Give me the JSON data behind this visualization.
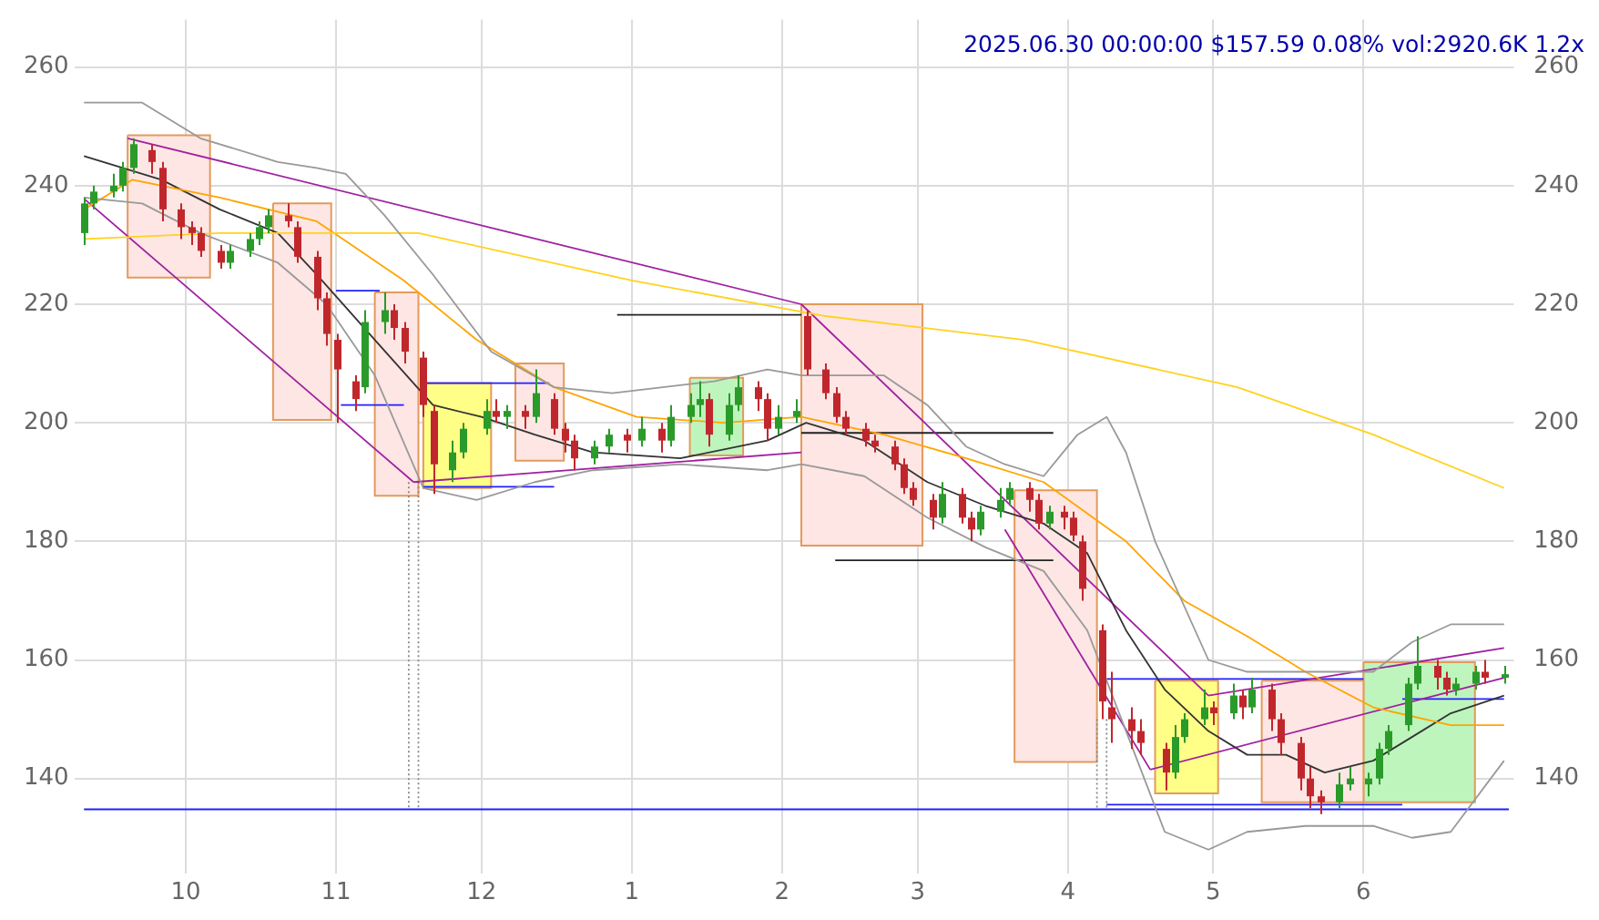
{
  "chart_data": {
    "type": "candlestick",
    "title": "2025.06.30 00:00:00 $157.59 0.08% vol:2920.6K 1.2x",
    "x": [
      "2024-09-10",
      "2024-09-12",
      "2024-09-16",
      "2024-09-18",
      "2024-09-20",
      "2024-09-24",
      "2024-09-26",
      "2024-09-30",
      "2024-10-02",
      "2024-10-04",
      "2024-10-08",
      "2024-10-10",
      "2024-10-14",
      "2024-10-16",
      "2024-10-18",
      "2024-10-22",
      "2024-10-24",
      "2024-10-28",
      "2024-10-30",
      "2024-11-01",
      "2024-11-05",
      "2024-11-07",
      "2024-11-11",
      "2024-11-13",
      "2024-11-15",
      "2024-11-19",
      "2024-11-21",
      "2024-11-25",
      "2024-11-27",
      "2024-12-02",
      "2024-12-04",
      "2024-12-06",
      "2024-12-10",
      "2024-12-12",
      "2024-12-16",
      "2024-12-18",
      "2024-12-20",
      "2024-12-24",
      "2024-12-27",
      "2024-12-31",
      "2025-01-03",
      "2025-01-07",
      "2025-01-09",
      "2025-01-13",
      "2025-01-15",
      "2025-01-17",
      "2025-01-21",
      "2025-01-23",
      "2025-01-27",
      "2025-01-29",
      "2025-01-31",
      "2025-02-04",
      "2025-02-06",
      "2025-02-10",
      "2025-02-12",
      "2025-02-14",
      "2025-02-18",
      "2025-02-20",
      "2025-02-24",
      "2025-02-26",
      "2025-02-28",
      "2025-03-04",
      "2025-03-06",
      "2025-03-10",
      "2025-03-12",
      "2025-03-14",
      "2025-03-18",
      "2025-03-20",
      "2025-03-24",
      "2025-03-26",
      "2025-03-28",
      "2025-03-31",
      "2025-04-02",
      "2025-04-04",
      "2025-04-08",
      "2025-04-10",
      "2025-04-14",
      "2025-04-16",
      "2025-04-21",
      "2025-04-23",
      "2025-04-25",
      "2025-04-29",
      "2025-05-01",
      "2025-05-05",
      "2025-05-07",
      "2025-05-09",
      "2025-05-13",
      "2025-05-15",
      "2025-05-19",
      "2025-05-21",
      "2025-05-23",
      "2025-05-27",
      "2025-05-29",
      "2025-06-02",
      "2025-06-04",
      "2025-06-06",
      "2025-06-10",
      "2025-06-12",
      "2025-06-16",
      "2025-06-18",
      "2025-06-20",
      "2025-06-24",
      "2025-06-26",
      "2025-06-30"
    ],
    "ohlc": [
      [
        232,
        238,
        230,
        237
      ],
      [
        237,
        240,
        236,
        239
      ],
      [
        239,
        242,
        238,
        240
      ],
      [
        240,
        244,
        239,
        243
      ],
      [
        243,
        248,
        242,
        247
      ],
      [
        246,
        247,
        242,
        244
      ],
      [
        243,
        244,
        234,
        236
      ],
      [
        236,
        237,
        231,
        233
      ],
      [
        233,
        234,
        230,
        232
      ],
      [
        232,
        233,
        228,
        229
      ],
      [
        229,
        230,
        226,
        227
      ],
      [
        227,
        230,
        226,
        229
      ],
      [
        229,
        232,
        228,
        231
      ],
      [
        231,
        234,
        230,
        233
      ],
      [
        233,
        236,
        232,
        235
      ],
      [
        235,
        237,
        233,
        234
      ],
      [
        233,
        234,
        227,
        228
      ],
      [
        228,
        229,
        219,
        221
      ],
      [
        221,
        222,
        213,
        215
      ],
      [
        214,
        215,
        200,
        209
      ],
      [
        207,
        208,
        202,
        204
      ],
      [
        206,
        219,
        205,
        217
      ],
      [
        217,
        222,
        215,
        219
      ],
      [
        219,
        220,
        214,
        216
      ],
      [
        216,
        217,
        210,
        212
      ],
      [
        211,
        212,
        201,
        203
      ],
      [
        202,
        203,
        188,
        193
      ],
      [
        192,
        197,
        190,
        195
      ],
      [
        195,
        200,
        194,
        199
      ],
      [
        199,
        204,
        198,
        202
      ],
      [
        202,
        204,
        200,
        201
      ],
      [
        201,
        203,
        199,
        202
      ],
      [
        202,
        203,
        199,
        201
      ],
      [
        201,
        209,
        200,
        205
      ],
      [
        204,
        205,
        198,
        199
      ],
      [
        199,
        200,
        195,
        197
      ],
      [
        197,
        198,
        192,
        194
      ],
      [
        194,
        197,
        193,
        196
      ],
      [
        196,
        199,
        195,
        198
      ],
      [
        198,
        199,
        195,
        197
      ],
      [
        197,
        201,
        196,
        199
      ],
      [
        199,
        200,
        195,
        197
      ],
      [
        197,
        203,
        196,
        201
      ],
      [
        201,
        205,
        200,
        203
      ],
      [
        203,
        207,
        201,
        204
      ],
      [
        204,
        205,
        196,
        198
      ],
      [
        198,
        205,
        197,
        203
      ],
      [
        203,
        208,
        202,
        206
      ],
      [
        206,
        207,
        202,
        204
      ],
      [
        204,
        205,
        197,
        199
      ],
      [
        199,
        203,
        198,
        201
      ],
      [
        201,
        204,
        200,
        202
      ],
      [
        218,
        219,
        208,
        209
      ],
      [
        209,
        210,
        204,
        205
      ],
      [
        205,
        206,
        200,
        201
      ],
      [
        201,
        202,
        198,
        199
      ],
      [
        199,
        200,
        196,
        197
      ],
      [
        197,
        198,
        195,
        196
      ],
      [
        196,
        197,
        192,
        193
      ],
      [
        193,
        194,
        188,
        189
      ],
      [
        189,
        190,
        186,
        187
      ],
      [
        187,
        188,
        182,
        184
      ],
      [
        184,
        190,
        183,
        188
      ],
      [
        188,
        189,
        183,
        184
      ],
      [
        184,
        185,
        180,
        182
      ],
      [
        182,
        186,
        181,
        185
      ],
      [
        185,
        189,
        184,
        187
      ],
      [
        187,
        190,
        186,
        189
      ],
      [
        189,
        190,
        185,
        187
      ],
      [
        187,
        188,
        182,
        183
      ],
      [
        183,
        186,
        182,
        185
      ],
      [
        185,
        186,
        182,
        184
      ],
      [
        184,
        185,
        180,
        181
      ],
      [
        180,
        181,
        170,
        172
      ],
      [
        165,
        166,
        150,
        153
      ],
      [
        152,
        158,
        146,
        150
      ],
      [
        150,
        152,
        145,
        148
      ],
      [
        148,
        150,
        144,
        146
      ],
      [
        145,
        146,
        138,
        141
      ],
      [
        141,
        149,
        140,
        147
      ],
      [
        147,
        151,
        146,
        150
      ],
      [
        150,
        155,
        149,
        152
      ],
      [
        152,
        153,
        149,
        151
      ],
      [
        151,
        156,
        150,
        154
      ],
      [
        154,
        155,
        150,
        152
      ],
      [
        152,
        157,
        151,
        155
      ],
      [
        155,
        156,
        148,
        150
      ],
      [
        150,
        151,
        144,
        146
      ],
      [
        146,
        147,
        138,
        140
      ],
      [
        140,
        142,
        135,
        137
      ],
      [
        137,
        138,
        134,
        136
      ],
      [
        136,
        141,
        135,
        139
      ],
      [
        139,
        142,
        138,
        140
      ],
      [
        139,
        141,
        137,
        140
      ],
      [
        140,
        146,
        139,
        145
      ],
      [
        145,
        149,
        144,
        148
      ],
      [
        149,
        157,
        148,
        156
      ],
      [
        156,
        164,
        155,
        159
      ],
      [
        159,
        160,
        155,
        157
      ],
      [
        157,
        158,
        154,
        155
      ],
      [
        155,
        157,
        154,
        156
      ],
      [
        156,
        159,
        155,
        158
      ],
      [
        158,
        160,
        156,
        157
      ],
      [
        157,
        159,
        156,
        157.6
      ]
    ],
    "xlim": [
      "2024-09-08",
      "2025-07-02"
    ],
    "xticks": [
      {
        "value": "2024-10-01",
        "label": "10"
      },
      {
        "value": "2024-11-01",
        "label": "11"
      },
      {
        "value": "2024-12-01",
        "label": "12"
      },
      {
        "value": "2025-01-01",
        "label": "1"
      },
      {
        "value": "2025-02-01",
        "label": "2"
      },
      {
        "value": "2025-03-01",
        "label": "3"
      },
      {
        "value": "2025-04-01",
        "label": "4"
      },
      {
        "value": "2025-05-01",
        "label": "5"
      },
      {
        "value": "2025-06-01",
        "label": "6"
      }
    ],
    "ylim": [
      124,
      268
    ],
    "yticks": [
      140,
      160,
      180,
      200,
      220,
      240,
      260
    ],
    "y2lim": [
      124,
      268
    ],
    "y2ticks": [
      140,
      160,
      180,
      200,
      220,
      240,
      260
    ],
    "grid": true,
    "legend": false,
    "marker": "none",
    "series": [
      {
        "type": "area",
        "color": "#fde6e4",
        "x": [
          "2024-09-19",
          "2024-10-06",
          "2024-10-06",
          "2024-09-19",
          "2024-09-19"
        ],
        "values": [
          248.5,
          248.5,
          224.5,
          224.5,
          248.5
        ]
      },
      {
        "type": "area",
        "color": "#fde6e4",
        "x": [
          "2024-10-19",
          "2024-10-31",
          "2024-10-31",
          "2024-10-19",
          "2024-10-19"
        ],
        "values": [
          237,
          237,
          200.5,
          200.5,
          237
        ]
      },
      {
        "type": "area",
        "color": "#fde6e4",
        "x": [
          "2024-11-09",
          "2024-11-18",
          "2024-11-18",
          "2024-11-09",
          "2024-11-09"
        ],
        "values": [
          222,
          222,
          187.7,
          187.7,
          222
        ]
      },
      {
        "type": "area",
        "color": "#ffff88",
        "x": [
          "2024-11-19",
          "2024-12-03",
          "2024-12-03",
          "2024-11-19",
          "2024-11-19"
        ],
        "values": [
          206.7,
          206.7,
          189,
          189,
          206.7
        ]
      },
      {
        "type": "area",
        "color": "#fde6e4",
        "x": [
          "2024-12-08",
          "2024-12-18",
          "2024-12-18",
          "2024-12-08",
          "2024-12-08"
        ],
        "values": [
          210,
          210,
          193.6,
          193.6,
          210
        ]
      },
      {
        "type": "area",
        "color": "#bdf5bd",
        "x": [
          "2025-01-13",
          "2025-01-24",
          "2025-01-24",
          "2025-01-13",
          "2025-01-13"
        ],
        "values": [
          207.6,
          207.6,
          194.5,
          194.5,
          207.6
        ]
      },
      {
        "type": "area",
        "color": "#fde6e4",
        "x": [
          "2025-02-05",
          "2025-03-02",
          "2025-03-02",
          "2025-02-05",
          "2025-02-05"
        ],
        "values": [
          220,
          220,
          179.3,
          179.3,
          220
        ]
      },
      {
        "type": "area",
        "color": "#fde6e4",
        "x": [
          "2025-03-21",
          "2025-04-07",
          "2025-04-07",
          "2025-03-21",
          "2025-03-21"
        ],
        "values": [
          188.6,
          188.6,
          142.8,
          142.8,
          188.6
        ]
      },
      {
        "type": "area",
        "color": "#ffff88",
        "x": [
          "2025-04-19",
          "2025-05-02",
          "2025-05-02",
          "2025-04-19",
          "2025-04-19"
        ],
        "values": [
          156.5,
          156.5,
          137.5,
          137.5,
          156.5
        ]
      },
      {
        "type": "area",
        "color": "#fde6e4",
        "x": [
          "2025-05-11",
          "2025-06-01",
          "2025-06-01",
          "2025-05-11",
          "2025-05-11"
        ],
        "values": [
          156.5,
          156.5,
          136,
          136,
          156.5
        ]
      },
      {
        "type": "area",
        "color": "#bdf5bd",
        "x": [
          "2025-06-01",
          "2025-06-24",
          "2025-06-24",
          "2025-06-01",
          "2025-06-01"
        ],
        "values": [
          159.6,
          159.6,
          136,
          136,
          159.6
        ]
      },
      {
        "type": "line",
        "color": "#999999",
        "x": [
          "2024-09-10",
          "2024-09-22",
          "2024-10-04",
          "2024-10-20",
          "2024-10-28",
          "2024-11-03",
          "2024-11-11",
          "2024-11-21",
          "2024-12-03",
          "2024-12-16",
          "2024-12-28",
          "2025-01-18",
          "2025-01-29",
          "2025-02-05",
          "2025-02-22",
          "2025-03-03",
          "2025-03-11",
          "2025-03-19",
          "2025-03-27",
          "2025-04-03",
          "2025-04-09",
          "2025-04-13",
          "2025-04-19",
          "2025-04-30",
          "2025-05-08",
          "2025-05-24",
          "2025-06-03",
          "2025-06-11",
          "2025-06-19",
          "2025-06-30"
        ],
        "values": [
          254,
          254,
          248,
          244,
          243,
          242,
          235,
          225,
          212,
          206,
          205,
          207,
          209,
          208,
          208,
          203,
          196,
          193,
          191,
          198,
          201,
          195,
          180,
          160,
          158,
          158,
          158,
          163,
          166,
          166
        ]
      },
      {
        "type": "line",
        "color": "#999999",
        "x": [
          "2024-09-10",
          "2024-09-22",
          "2024-10-04",
          "2024-10-20",
          "2024-10-30",
          "2024-11-09",
          "2024-11-19",
          "2024-11-30",
          "2024-12-12",
          "2024-12-24",
          "2025-01-11",
          "2025-01-29",
          "2025-02-05",
          "2025-02-18",
          "2025-03-03",
          "2025-03-15",
          "2025-03-27",
          "2025-04-05",
          "2025-04-13",
          "2025-04-21",
          "2025-04-30",
          "2025-05-08",
          "2025-05-20",
          "2025-06-03",
          "2025-06-11",
          "2025-06-19",
          "2025-06-30"
        ],
        "values": [
          238,
          237,
          232,
          227,
          220,
          208,
          189,
          187,
          190,
          192,
          193,
          192,
          193,
          191,
          184,
          179,
          175,
          165,
          148,
          131,
          128,
          131,
          132,
          132,
          130,
          131,
          143
        ]
      },
      {
        "type": "line",
        "color": "#ffd21f",
        "x": [
          "2024-09-10",
          "2024-10-08",
          "2024-11-18",
          "2025-01-01",
          "2025-02-10",
          "2025-03-23",
          "2025-05-06",
          "2025-06-03",
          "2025-06-30"
        ],
        "values": [
          231,
          232,
          232,
          224,
          218,
          214,
          206,
          198,
          189
        ]
      },
      {
        "type": "line",
        "color": "#ffa500",
        "x": [
          "2024-09-10",
          "2024-09-20",
          "2024-10-08",
          "2024-10-28",
          "2024-11-15",
          "2024-11-30",
          "2024-12-16",
          "2025-01-02",
          "2025-01-20",
          "2025-02-05",
          "2025-02-22",
          "2025-03-11",
          "2025-03-27",
          "2025-04-13",
          "2025-04-25",
          "2025-05-08",
          "2025-05-20",
          "2025-06-03",
          "2025-06-19",
          "2025-06-30"
        ],
        "values": [
          236,
          241,
          238,
          234,
          224,
          214,
          206,
          201,
          200,
          201,
          198,
          194,
          190,
          180,
          170,
          164,
          158,
          152,
          149,
          149
        ]
      },
      {
        "type": "line",
        "color": "#333333",
        "x": [
          "2024-09-10",
          "2024-09-26",
          "2024-10-08",
          "2024-10-20",
          "2024-10-28",
          "2024-11-09",
          "2024-11-21",
          "2024-12-01",
          "2024-12-12",
          "2024-12-24",
          "2025-01-11",
          "2025-01-29",
          "2025-02-06",
          "2025-02-18",
          "2025-03-03",
          "2025-03-15",
          "2025-03-27",
          "2025-04-05",
          "2025-04-13",
          "2025-04-21",
          "2025-04-30",
          "2025-05-08",
          "2025-05-16",
          "2025-05-24",
          "2025-06-03",
          "2025-06-11",
          "2025-06-19",
          "2025-06-30"
        ],
        "values": [
          245,
          241,
          236,
          232,
          225,
          214,
          203,
          201,
          198,
          195,
          194,
          197,
          200,
          197,
          190,
          186,
          183,
          178,
          165,
          155,
          148,
          144,
          144,
          141,
          143,
          147,
          151,
          154
        ]
      },
      {
        "type": "line",
        "color": "#a020a0",
        "x": [
          "2024-09-19",
          "2025-02-05"
        ],
        "values": [
          248,
          220
        ]
      },
      {
        "type": "line",
        "color": "#a020a0",
        "x": [
          "2024-09-10",
          "2024-11-17"
        ],
        "values": [
          237.8,
          190
        ]
      },
      {
        "type": "line",
        "color": "#a020a0",
        "x": [
          "2024-11-17",
          "2025-02-05"
        ],
        "values": [
          190,
          195
        ]
      },
      {
        "type": "line",
        "color": "#a020a0",
        "x": [
          "2025-02-05",
          "2025-04-30"
        ],
        "values": [
          220,
          154
        ]
      },
      {
        "type": "line",
        "color": "#a020a0",
        "x": [
          "2025-03-19",
          "2025-04-18"
        ],
        "values": [
          182,
          141.5
        ]
      },
      {
        "type": "line",
        "color": "#a020a0",
        "x": [
          "2025-04-18",
          "2025-06-30"
        ],
        "values": [
          141.5,
          157
        ]
      },
      {
        "type": "line",
        "color": "#a020a0",
        "x": [
          "2025-04-30",
          "2025-06-30"
        ],
        "values": [
          154,
          162
        ]
      },
      {
        "type": "line",
        "color": "#2020ff",
        "x": [
          "2024-11-01",
          "2024-11-10"
        ],
        "values": [
          222.3,
          222.3
        ]
      },
      {
        "type": "line",
        "color": "#2020ff",
        "x": [
          "2024-11-02",
          "2024-11-15"
        ],
        "values": [
          203,
          203
        ]
      },
      {
        "type": "line",
        "color": "#2020ff",
        "x": [
          "2024-11-19",
          "2024-12-15"
        ],
        "values": [
          206.7,
          206.7
        ]
      },
      {
        "type": "line",
        "color": "#2020ff",
        "x": [
          "2024-11-19",
          "2024-12-16"
        ],
        "values": [
          189.2,
          189.2
        ]
      },
      {
        "type": "line",
        "color": "#222222",
        "x": [
          "2024-12-29",
          "2025-02-05"
        ],
        "values": [
          218.2,
          218.2
        ]
      },
      {
        "type": "line",
        "color": "#222222",
        "x": [
          "2025-02-05",
          "2025-03-29"
        ],
        "values": [
          198.3,
          198.3
        ]
      },
      {
        "type": "line",
        "color": "#222222",
        "x": [
          "2025-02-12",
          "2025-03-29"
        ],
        "values": [
          176.8,
          176.8
        ]
      },
      {
        "type": "line",
        "color": "#2020ff",
        "x": [
          "2025-04-09",
          "2025-06-01"
        ],
        "values": [
          156.8,
          156.8
        ]
      },
      {
        "type": "line",
        "color": "#2020ff",
        "x": [
          "2025-04-09",
          "2025-06-09"
        ],
        "values": [
          135.6,
          135.6
        ]
      },
      {
        "type": "line",
        "color": "#2020ff",
        "x": [
          "2025-06-09",
          "2025-06-30"
        ],
        "values": [
          153.4,
          153.4
        ]
      },
      {
        "type": "line",
        "color": "#2020ff",
        "x": [
          "2024-09-10",
          "2025-07-01"
        ],
        "values": [
          134.8,
          134.8
        ]
      },
      {
        "type": "line",
        "color": "#888888",
        "line_style": "dotted",
        "x": [
          "2024-11-16",
          "2024-11-16"
        ],
        "values": [
          190,
          134.8
        ]
      },
      {
        "type": "line",
        "color": "#888888",
        "line_style": "dotted",
        "x": [
          "2024-11-18",
          "2024-11-18"
        ],
        "values": [
          190,
          134.8
        ]
      },
      {
        "type": "line",
        "color": "#888888",
        "line_style": "dotted",
        "x": [
          "2025-04-07",
          "2025-04-07"
        ],
        "values": [
          150,
          134.8
        ]
      },
      {
        "type": "line",
        "color": "#888888",
        "line_style": "dotted",
        "x": [
          "2025-04-09",
          "2025-04-09"
        ],
        "values": [
          150,
          134.8
        ]
      }
    ]
  }
}
